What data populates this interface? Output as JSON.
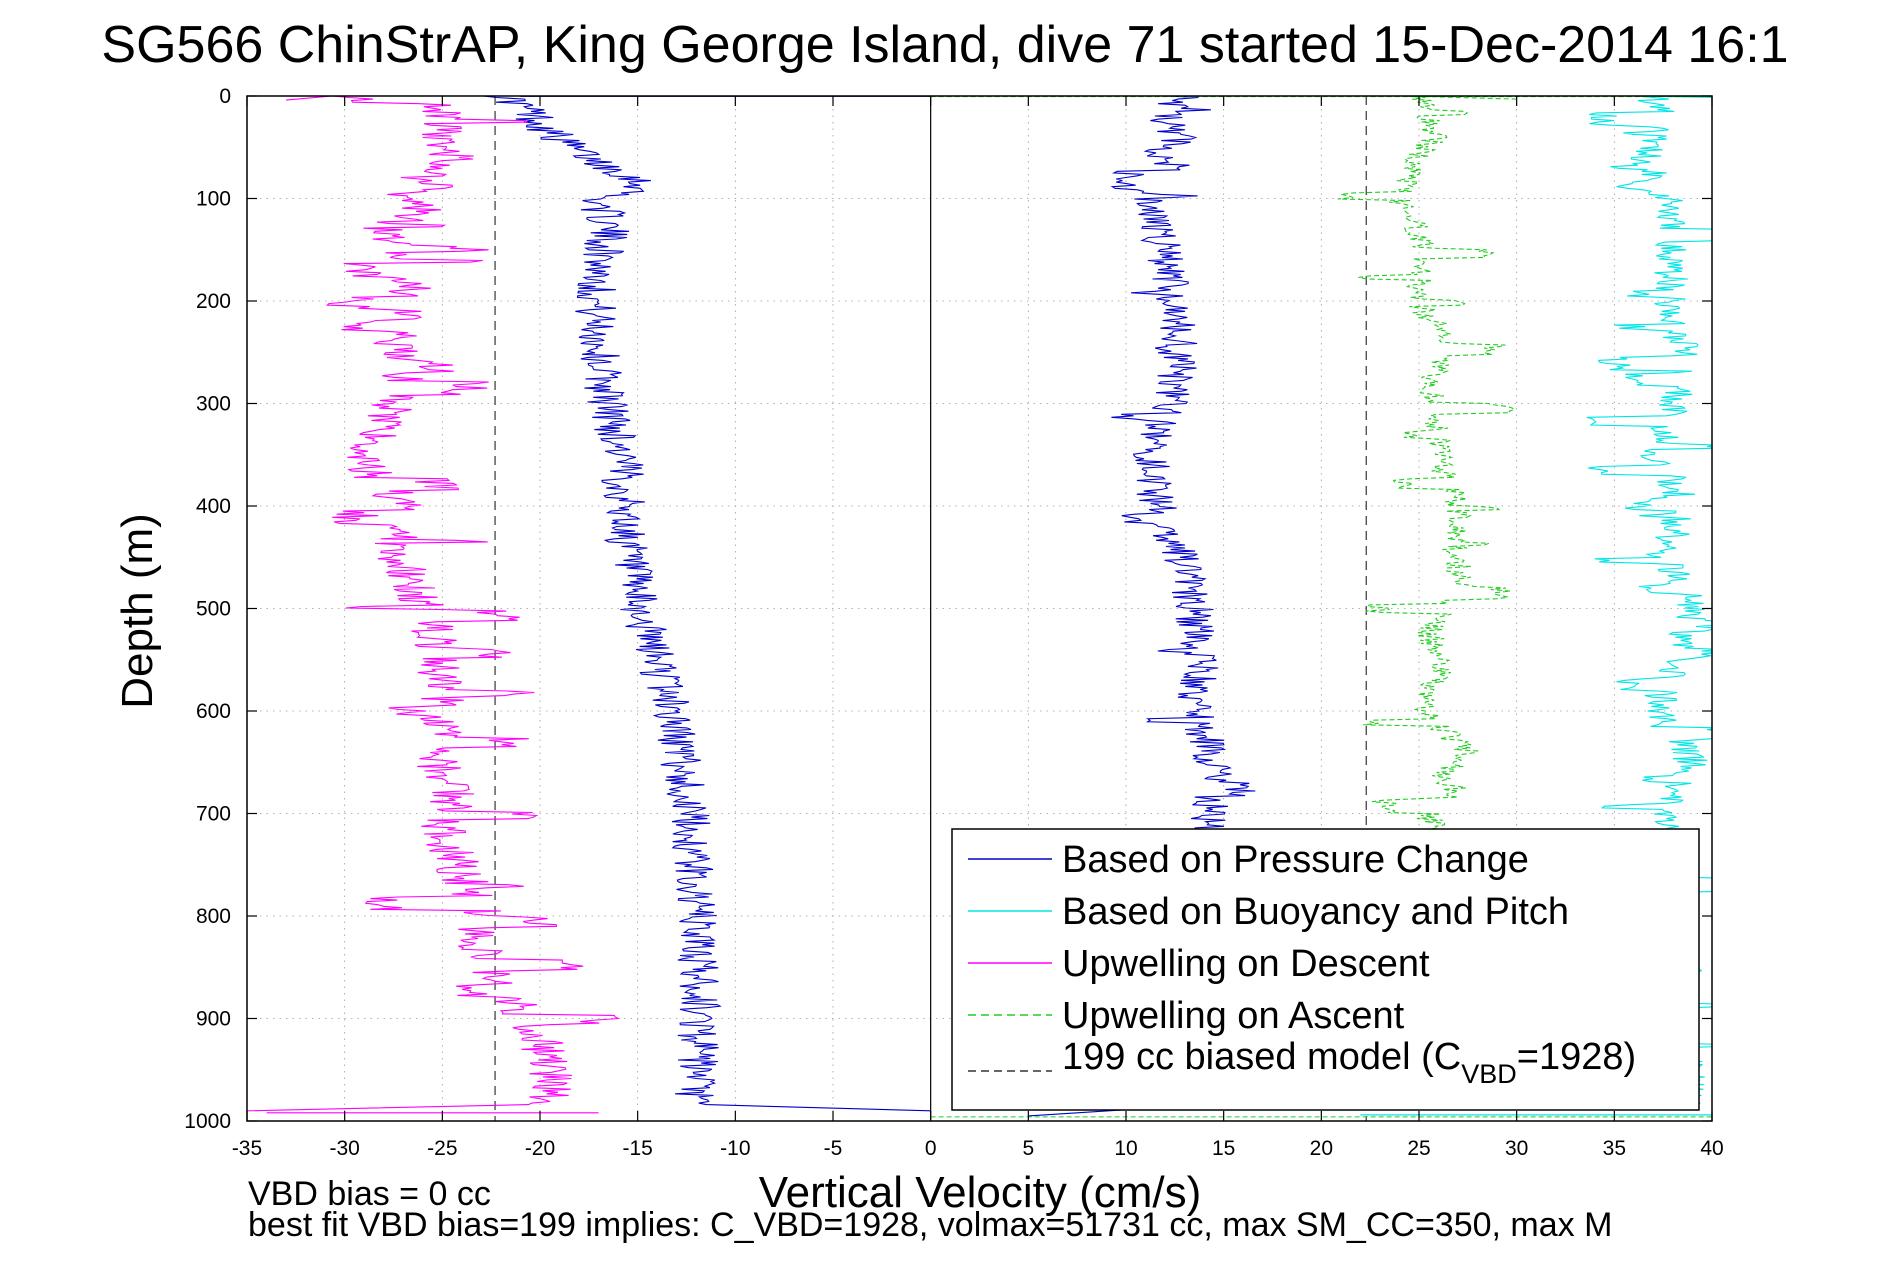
{
  "chart_data": {
    "type": "line",
    "title": "SG566 ChinStrAP, King George Island, dive 71 started 15-Dec-2014 16:1",
    "xlabel": "Vertical Velocity (cm/s)",
    "ylabel": "Depth (m)",
    "xlim": [
      -35,
      40
    ],
    "ylim": [
      0,
      1000
    ],
    "y_reversed": true,
    "grid": true,
    "x_ticks": [
      -35,
      -30,
      -25,
      -20,
      -15,
      -10,
      -5,
      0,
      5,
      10,
      15,
      20,
      25,
      30,
      35,
      40
    ],
    "y_ticks": [
      0,
      100,
      200,
      300,
      400,
      500,
      600,
      700,
      800,
      900,
      1000
    ],
    "legend_position": "bottom-right",
    "zero_line": 0,
    "bias_lines": [
      -22.3,
      22.3
    ],
    "series": [
      {
        "name": "Based on Pressure Change",
        "color": "#0000cc",
        "style": "solid",
        "depth": [
          0,
          15,
          30,
          45,
          60,
          80,
          90,
          100,
          130,
          160,
          200,
          250,
          300,
          350,
          400,
          450,
          500,
          520,
          550,
          600,
          650,
          700,
          750,
          800,
          850,
          900,
          950,
          985
        ],
        "descent": [
          -21.8,
          -20.5,
          -19.8,
          -18.8,
          -17.5,
          -15.2,
          -14.6,
          -17.0,
          -16.5,
          -16.8,
          -17.2,
          -17.0,
          -16.5,
          -15.8,
          -15.7,
          -15.5,
          -15.0,
          -14.6,
          -14.0,
          -13.2,
          -12.8,
          -12.4,
          -12.2,
          -12.0,
          -11.9,
          -11.8,
          -12.0,
          -12.2
        ],
        "ascent": [
          13.0,
          11.8,
          12.2,
          12.8,
          11.0,
          9.8,
          10.2,
          11.0,
          11.6,
          12.1,
          12.5,
          12.8,
          12.2,
          11.3,
          11.6,
          12.8,
          13.5,
          13.5,
          13.8,
          13.4,
          14.5,
          14.2,
          14.5,
          14.3,
          14.4,
          14.5,
          14.6,
          14.6
        ]
      },
      {
        "name": "Based on Buoyancy and Pitch",
        "color": "#00e5e5",
        "style": "solid",
        "depth": [
          0,
          30,
          60,
          80,
          90,
          100,
          150,
          200,
          250,
          300,
          350,
          400,
          450,
          500,
          550,
          600,
          650,
          700,
          750,
          800,
          850,
          900,
          950,
          985
        ],
        "ascent": [
          37.0,
          37.5,
          36.5,
          37.2,
          35.5,
          38.2,
          38.0,
          37.8,
          38.5,
          38.2,
          37.2,
          38.6,
          37.5,
          39.0,
          38.0,
          37.2,
          39.0,
          37.5,
          38.5,
          38.0,
          38.6,
          38.4,
          38.8,
          38.8
        ]
      },
      {
        "name": "Upwelling on Descent",
        "color": "#ff00ff",
        "style": "solid",
        "depth": [
          0,
          20,
          40,
          60,
          80,
          100,
          130,
          160,
          200,
          240,
          280,
          320,
          360,
          400,
          440,
          480,
          520,
          560,
          600,
          640,
          680,
          720,
          760,
          800,
          840,
          880,
          920,
          960,
          985
        ],
        "offset": [
          -25.0,
          -25.0,
          -25.2,
          -24.5,
          -26.0,
          -25.0,
          -28.0,
          -27.0,
          -26.5,
          -27.5,
          -27.0,
          -28.0,
          -29.0,
          -27.0,
          -27.5,
          -26.5,
          -25.5,
          -25.2,
          -24.8,
          -25.5,
          -24.5,
          -25.0,
          -24.0,
          -23.0,
          -23.0,
          -21.5,
          -20.0,
          -19.5,
          -19.8
        ]
      },
      {
        "name": "Upwelling on Ascent",
        "color": "#22cc22",
        "style": "dashed",
        "depth": [
          0,
          20,
          40,
          60,
          80,
          100,
          130,
          160,
          200,
          240,
          280,
          320,
          360,
          400,
          440,
          480,
          520,
          560,
          600,
          640,
          680,
          720,
          760,
          800,
          840,
          880,
          920,
          960,
          985
        ],
        "offset": [
          25.0,
          25.3,
          26.0,
          24.8,
          24.5,
          23.8,
          25.0,
          25.2,
          24.9,
          26.5,
          25.5,
          25.8,
          26.2,
          27.0,
          26.8,
          27.2,
          25.5,
          26.0,
          25.2,
          27.5,
          25.2,
          25.8,
          25.3,
          25.1,
          25.0,
          25.2,
          25.2,
          25.2,
          25.2
        ]
      },
      {
        "name": "199 cc biased model (C_VBD=1928)",
        "color": "#333333",
        "style": "dashed"
      }
    ],
    "legend": {
      "items": [
        {
          "text": "Based on Pressure Change",
          "color": "#0000cc",
          "style": "solid"
        },
        {
          "text": "Based on Buoyancy and Pitch",
          "color": "#00e5e5",
          "style": "solid"
        },
        {
          "text": "Upwelling on Descent",
          "color": "#ff00ff",
          "style": "solid"
        },
        {
          "text": "Upwelling on Ascent",
          "color": "#22cc22",
          "style": "dashed"
        }
      ],
      "model_prefix": "199 cc biased model (C",
      "model_sub": "VBD",
      "model_suffix": "=1928)",
      "model_color": "#333333"
    },
    "annotations": {
      "vbd_bias": "VBD bias = 0 cc",
      "best_fit": "best fit VBD bias=199 implies: C_VBD=1928, volmax=51731 cc, max SM_CC=350, max M"
    }
  }
}
